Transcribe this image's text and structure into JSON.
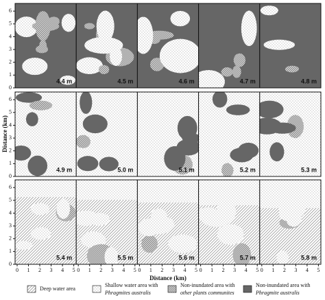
{
  "y_axis_label": "Distance (km)",
  "x_axis_label": "Distance (km)",
  "y_ticks": [
    0,
    1,
    2,
    3,
    4,
    5,
    6
  ],
  "x_ticks": [
    0,
    1,
    2,
    3,
    4,
    5
  ],
  "panels": [
    {
      "label": "4.4 m"
    },
    {
      "label": "4.5 m"
    },
    {
      "label": "4.6 m"
    },
    {
      "label": "4.7 m"
    },
    {
      "label": "4.8 m"
    },
    {
      "label": "4.9 m"
    },
    {
      "label": "5.0 m"
    },
    {
      "label": "5.1 m"
    },
    {
      "label": "5.2 m"
    },
    {
      "label": "5.3 m"
    },
    {
      "label": "5.4 m"
    },
    {
      "label": "5.5 m"
    },
    {
      "label": "5.6 m"
    },
    {
      "label": "5.7 m"
    },
    {
      "label": "5.8 m"
    }
  ],
  "legend": [
    {
      "line1": "Deep water area"
    },
    {
      "line1": "Shallow water area with",
      "line2": "Phragmites australis"
    },
    {
      "line1": "Non-inundated area with",
      "line2": "other plants communites"
    },
    {
      "line1": "Non-inundated area with",
      "line2": "Phragmite australis"
    }
  ]
}
